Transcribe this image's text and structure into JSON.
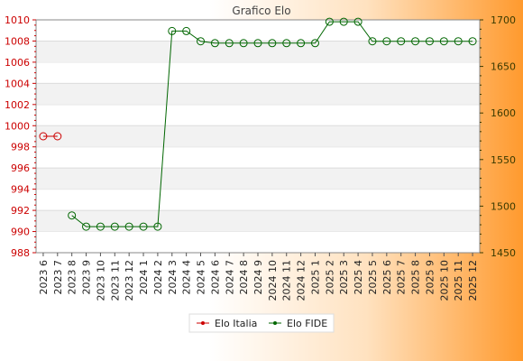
{
  "chart_data": {
    "type": "line",
    "title": "Grafico Elo",
    "x": [
      "2023 6",
      "2023 7",
      "2023 8",
      "2023 9",
      "2023 10",
      "2023 11",
      "2023 12",
      "2024 1",
      "2024 2",
      "2024 3",
      "2024 4",
      "2024 5",
      "2024 6",
      "2024 7",
      "2024 8",
      "2024 9",
      "2024 10",
      "2024 11",
      "2024 12",
      "2025 1",
      "2025 2",
      "2025 3",
      "2025 4",
      "2025 5",
      "2025 6",
      "2025 7",
      "2025 8",
      "2025 9",
      "2025 10",
      "2025 11",
      "2025 12"
    ],
    "y_left": {
      "min": 988,
      "max": 1010,
      "ticks": [
        988,
        990,
        992,
        994,
        996,
        998,
        1000,
        1002,
        1004,
        1006,
        1008,
        1010
      ],
      "color": "#cc0000"
    },
    "y_right": {
      "min": 1450,
      "max": 1700,
      "ticks": [
        1450,
        1500,
        1550,
        1600,
        1650,
        1700
      ],
      "color": "#3a3a00"
    },
    "series": [
      {
        "name": "Elo Italia",
        "axis": "left",
        "color": "#cc0000",
        "values": [
          999,
          999,
          null,
          null,
          null,
          null,
          null,
          null,
          null,
          null,
          null,
          null,
          null,
          null,
          null,
          null,
          null,
          null,
          null,
          null,
          null,
          null,
          null,
          null,
          null,
          null,
          null,
          null,
          null,
          null,
          null
        ]
      },
      {
        "name": "Elo FIDE",
        "axis": "right",
        "color": "#006600",
        "values": [
          null,
          null,
          1490,
          1478,
          1478,
          1478,
          1478,
          1478,
          1478,
          1688,
          1688,
          1677,
          1675,
          1675,
          1675,
          1675,
          1675,
          1675,
          1675,
          1675,
          1698,
          1698,
          1698,
          1677,
          1677,
          1677,
          1677,
          1677,
          1677,
          1677,
          1677
        ]
      }
    ],
    "grid": true,
    "legend": "bottom-center"
  }
}
